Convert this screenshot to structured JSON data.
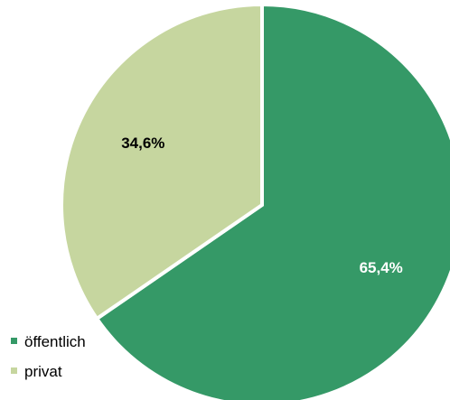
{
  "chart_data": {
    "type": "pie",
    "categories": [
      "öffentlich",
      "privat"
    ],
    "values": [
      65.4,
      34.6
    ],
    "data_labels": [
      "65,4%",
      "34,6%"
    ],
    "label_colors": [
      "#ffffff",
      "#000000"
    ],
    "colors": [
      "#359967",
      "#c6d69f"
    ],
    "start_angle_deg": 0,
    "direction": "clockwise",
    "legend": {
      "position": "bottom-left",
      "entries": [
        "öffentlich",
        "privat"
      ]
    },
    "title": ""
  }
}
